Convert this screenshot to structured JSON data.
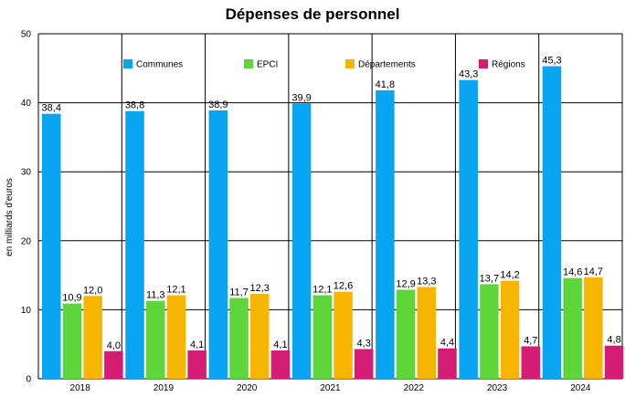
{
  "chart_data": {
    "type": "bar",
    "title": "Dépenses de personnel",
    "xlabel": "",
    "ylabel": "en milliards d'euros",
    "ylim": [
      0,
      50
    ],
    "yticks": [
      "0",
      "10",
      "20",
      "30",
      "40",
      "50"
    ],
    "grid": true,
    "legend_position": "top",
    "categories": [
      "2018",
      "2019",
      "2020",
      "2021",
      "2022",
      "2023",
      "2024"
    ],
    "series": [
      {
        "name": "Communes",
        "color": "#0AA5F2",
        "values": [
          38.4,
          38.8,
          38.9,
          39.9,
          41.8,
          43.3,
          45.3
        ],
        "labels": [
          "38,4",
          "38,8",
          "38,9",
          "39,9",
          "41,8",
          "43,3",
          "45,3"
        ]
      },
      {
        "name": "EPCI",
        "color": "#5ED63A",
        "values": [
          10.9,
          11.3,
          11.7,
          12.1,
          12.9,
          13.7,
          14.6
        ],
        "labels": [
          "10,9",
          "11,3",
          "11,7",
          "12,1",
          "12,9",
          "13,7",
          "14,6"
        ]
      },
      {
        "name": "Départements",
        "color": "#F7B500",
        "values": [
          12.0,
          12.1,
          12.3,
          12.6,
          13.3,
          14.2,
          14.7
        ],
        "labels": [
          "12,0",
          "12,1",
          "12,3",
          "12,6",
          "13,3",
          "14,2",
          "14,7"
        ]
      },
      {
        "name": "Régions",
        "color": "#D41C74",
        "values": [
          4.0,
          4.1,
          4.1,
          4.3,
          4.4,
          4.7,
          4.8
        ],
        "labels": [
          "4,0",
          "4,1",
          "4,1",
          "4,3",
          "4,4",
          "4,7",
          "4,8"
        ]
      }
    ]
  }
}
